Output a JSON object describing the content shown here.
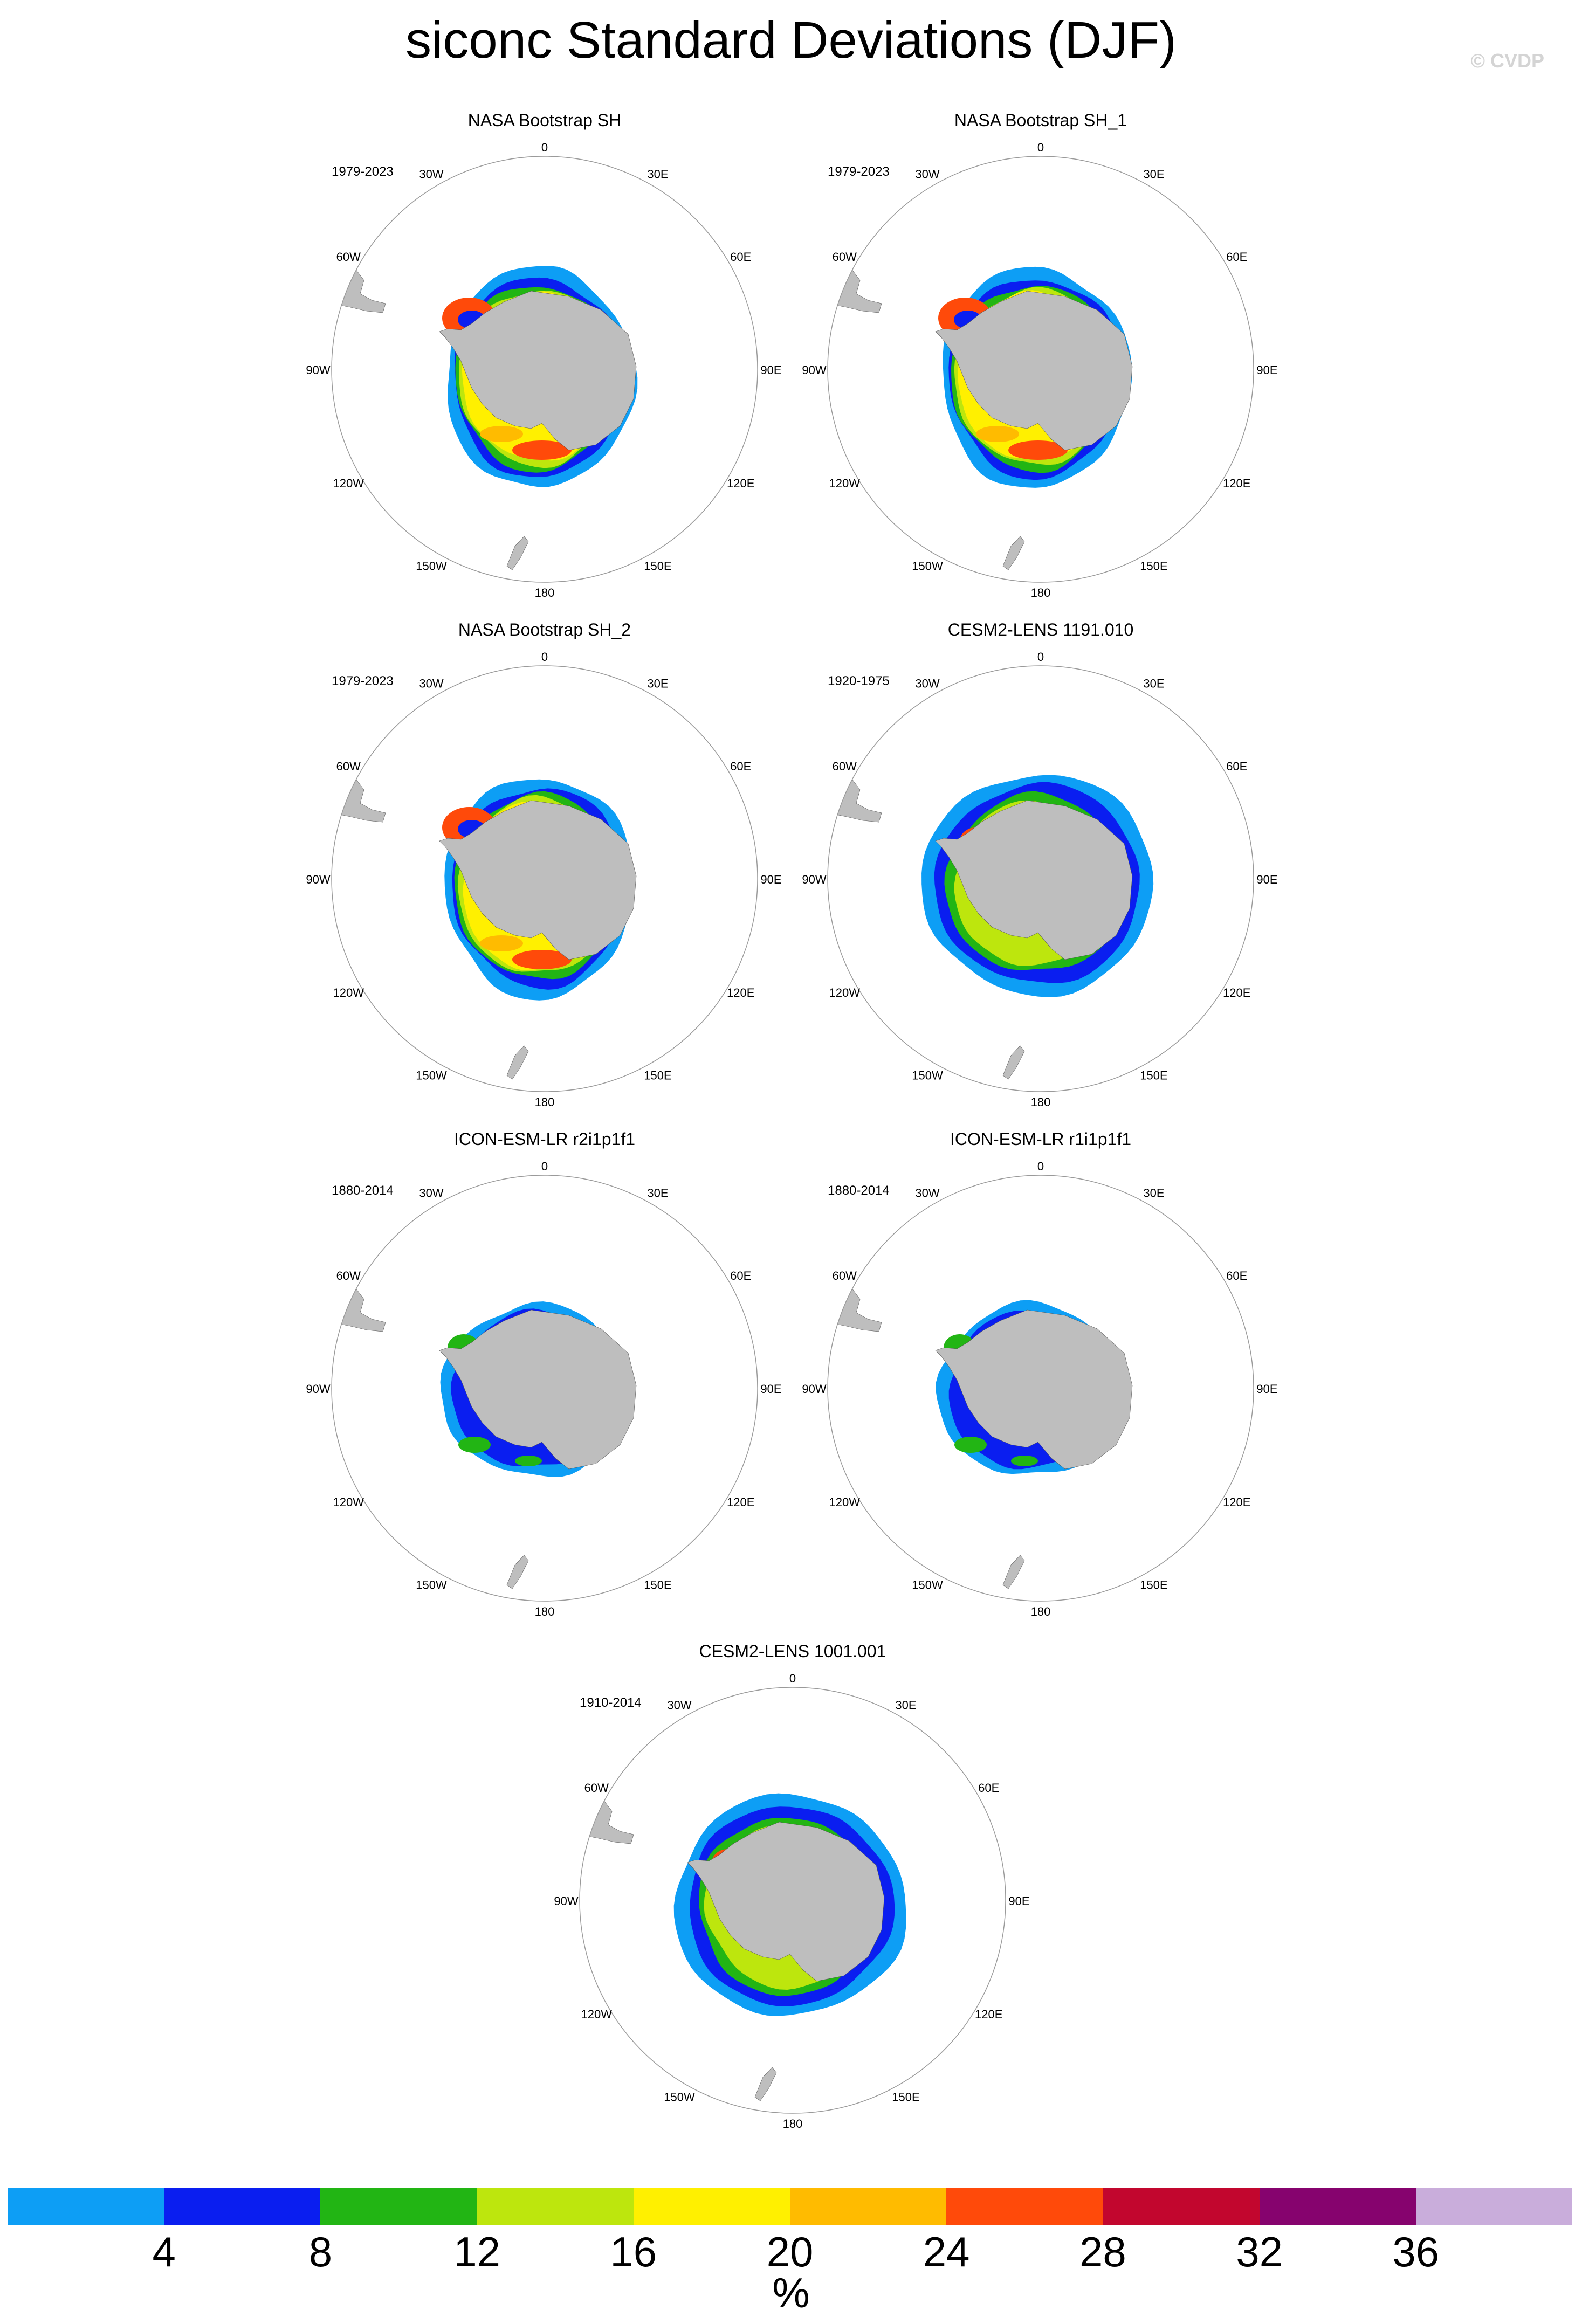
{
  "title": "siconc Standard Deviations (DJF)",
  "watermark": "© CVDP",
  "longitude_labels": [
    "0",
    "30E",
    "60E",
    "90E",
    "120E",
    "150E",
    "180",
    "150W",
    "120W",
    "90W",
    "60W",
    "30W"
  ],
  "panels": [
    {
      "title": "NASA Bootstrap SH",
      "period": "1979-2023",
      "style": "obs"
    },
    {
      "title": "NASA Bootstrap SH_1",
      "period": "1979-2023",
      "style": "obs"
    },
    {
      "title": "NASA Bootstrap SH_2",
      "period": "1979-2023",
      "style": "obs"
    },
    {
      "title": "CESM2-LENS 1191.010",
      "period": "1920-1975",
      "style": "cesm"
    },
    {
      "title": "ICON-ESM-LR r2i1p1f1",
      "period": "1880-2014",
      "style": "icon"
    },
    {
      "title": "ICON-ESM-LR r1i1p1f1",
      "period": "1880-2014",
      "style": "icon"
    },
    {
      "title": "CESM2-LENS 1001.001",
      "period": "1910-2014",
      "style": "cesm"
    }
  ],
  "colorbar": {
    "units": "%",
    "tick_labels": [
      "4",
      "8",
      "12",
      "16",
      "20",
      "24",
      "28",
      "32",
      "36"
    ],
    "colors": [
      "#0d9ef5",
      "#0a1ef0",
      "#22b514",
      "#bde60d",
      "#fff000",
      "#ffbb00",
      "#ff4a0a",
      "#c2062e",
      "#86036e",
      "#c9addb"
    ]
  },
  "land_color": "#bebebe"
}
